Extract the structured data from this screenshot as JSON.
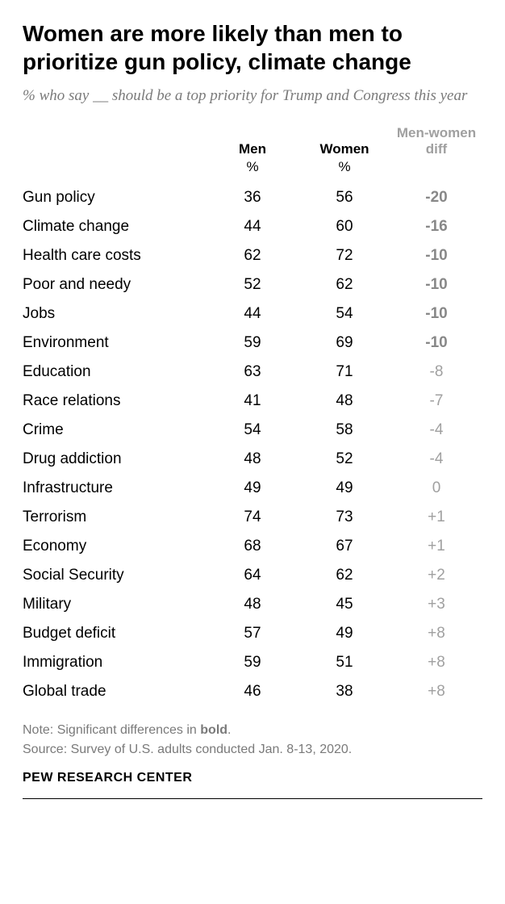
{
  "title": "Women are more likely than men to prioritize gun policy, climate change",
  "subtitle": "% who say __ should be a top priority for Trump and Congress this year",
  "columns": {
    "label": "",
    "men": "Men",
    "women": "Women",
    "diff_line1": "Men-women",
    "diff_line2": "diff"
  },
  "unit": "%",
  "rows": [
    {
      "label": "Gun policy",
      "men": 36,
      "women": 56,
      "diff": "-20",
      "significant": true
    },
    {
      "label": "Climate change",
      "men": 44,
      "women": 60,
      "diff": "-16",
      "significant": true
    },
    {
      "label": "Health care costs",
      "men": 62,
      "women": 72,
      "diff": "-10",
      "significant": true
    },
    {
      "label": "Poor and needy",
      "men": 52,
      "women": 62,
      "diff": "-10",
      "significant": true
    },
    {
      "label": "Jobs",
      "men": 44,
      "women": 54,
      "diff": "-10",
      "significant": true
    },
    {
      "label": "Environment",
      "men": 59,
      "women": 69,
      "diff": "-10",
      "significant": true
    },
    {
      "label": "Education",
      "men": 63,
      "women": 71,
      "diff": "-8",
      "significant": false
    },
    {
      "label": "Race relations",
      "men": 41,
      "women": 48,
      "diff": "-7",
      "significant": false
    },
    {
      "label": "Crime",
      "men": 54,
      "women": 58,
      "diff": "-4",
      "significant": false
    },
    {
      "label": "Drug addiction",
      "men": 48,
      "women": 52,
      "diff": "-4",
      "significant": false
    },
    {
      "label": "Infrastructure",
      "men": 49,
      "women": 49,
      "diff": "0",
      "significant": false
    },
    {
      "label": "Terrorism",
      "men": 74,
      "women": 73,
      "diff": "+1",
      "significant": false
    },
    {
      "label": "Economy",
      "men": 68,
      "women": 67,
      "diff": "+1",
      "significant": false
    },
    {
      "label": "Social Security",
      "men": 64,
      "women": 62,
      "diff": "+2",
      "significant": false
    },
    {
      "label": "Military",
      "men": 48,
      "women": 45,
      "diff": "+3",
      "significant": false
    },
    {
      "label": "Budget deficit",
      "men": 57,
      "women": 49,
      "diff": "+8",
      "significant": false
    },
    {
      "label": "Immigration",
      "men": 59,
      "women": 51,
      "diff": "+8",
      "significant": false
    },
    {
      "label": "Global trade",
      "men": 46,
      "women": 38,
      "diff": "+8",
      "significant": false
    }
  ],
  "note_prefix": "Note: Significant differences in ",
  "note_bold": "bold",
  "note_suffix": ".",
  "source_line": "Source: Survey of U.S. adults conducted Jan. 8-13, 2020.",
  "org": "PEW RESEARCH CENTER",
  "styling": {
    "type": "table",
    "title_fontsize": 28,
    "title_color": "#000000",
    "subtitle_fontsize": 19,
    "subtitle_color": "#7a7a7a",
    "header_fontsize": 17,
    "body_fontsize": 19,
    "diff_color_normal": "#a0a0a0",
    "diff_color_significant": "#888888",
    "note_color": "#7a7a7a",
    "note_fontsize": 16,
    "org_fontsize": 16,
    "background_color": "#ffffff",
    "bottom_rule_color": "#000000",
    "column_widths_pct": [
      40,
      20,
      20,
      20
    ],
    "column_alignment": [
      "left",
      "center",
      "center",
      "center"
    ]
  }
}
